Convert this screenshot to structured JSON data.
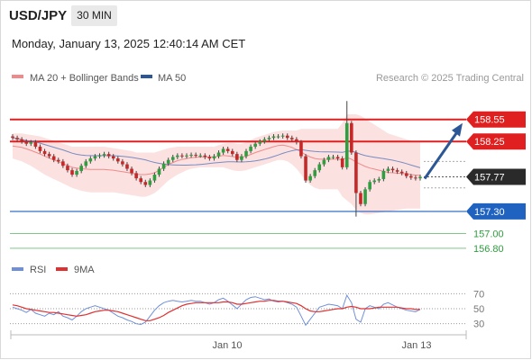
{
  "header": {
    "symbol": "USD/JPY",
    "timeframe": "30 MIN",
    "timestamp": "Monday, January 13, 2025 12:40:14 AM CET"
  },
  "legend": {
    "ma20_label": "MA 20 + Bollinger Bands",
    "ma50_label": "MA 50",
    "credit": "Research © 2025 Trading Central",
    "rsi_label": "RSI",
    "rsi_ma_label": "9MA"
  },
  "colors": {
    "candle_up": "#2e9e3e",
    "candle_down": "#c62828",
    "bollinger_band": "#fbdada",
    "ma20": "#f08a8a",
    "ma50": "#5577bb",
    "resistance": "#e02020",
    "support": "#1f62c0",
    "support_weak": "#2e9e3e",
    "arrow": "#2b5797",
    "rsi": "#6f8fd8",
    "rsi_ma": "#e03030"
  },
  "chart_data": [
    {
      "type": "candlestick",
      "series_names": [
        "MA 20 + Bollinger Bands",
        "MA 50"
      ],
      "x_tick_labels": [
        "Jan 10",
        "Jan 13"
      ],
      "ylim": [
        156.7,
        158.95
      ],
      "last_price": 157.77,
      "levels": [
        {
          "value": 158.55,
          "label": "158.55",
          "kind": "resistance"
        },
        {
          "value": 158.25,
          "label": "158.25",
          "kind": "resistance"
        },
        {
          "value": 157.3,
          "label": "157.30",
          "kind": "support"
        },
        {
          "value": 157.0,
          "label": "157.00",
          "kind": "target"
        },
        {
          "value": 156.8,
          "label": "156.80",
          "kind": "target"
        }
      ],
      "current_price_label": "157.77",
      "forecast_arrow": {
        "from": 157.77,
        "to": 158.55
      },
      "closes": [
        158.3,
        158.28,
        158.25,
        158.22,
        158.24,
        158.18,
        158.12,
        158.08,
        158.05,
        158.0,
        157.98,
        157.92,
        157.86,
        157.8,
        157.85,
        157.92,
        157.98,
        158.02,
        158.05,
        158.06,
        158.08,
        158.05,
        158.02,
        157.98,
        157.94,
        157.88,
        157.82,
        157.75,
        157.7,
        157.66,
        157.72,
        157.8,
        157.88,
        157.95,
        158.0,
        158.04,
        158.06,
        158.05,
        158.06,
        158.07,
        158.06,
        158.06,
        158.04,
        158.02,
        158.05,
        158.1,
        158.15,
        158.12,
        158.08,
        158.0,
        158.05,
        158.12,
        158.18,
        158.22,
        158.25,
        158.28,
        158.3,
        158.32,
        158.32,
        158.33,
        158.3,
        158.28,
        158.24,
        158.05,
        157.72,
        157.78,
        157.86,
        157.94,
        158.0,
        158.04,
        158.04,
        158.02,
        157.9,
        158.5,
        158.1,
        157.55,
        157.4,
        157.6,
        157.7,
        157.72,
        157.74,
        157.85,
        157.88,
        157.86,
        157.84,
        157.82,
        157.78,
        157.76,
        157.75,
        157.77
      ],
      "bollinger_upper": [
        158.36,
        158.36,
        158.36,
        158.35,
        158.34,
        158.33,
        158.32,
        158.3,
        158.28,
        158.26,
        158.24,
        158.22,
        158.2,
        158.18,
        158.18,
        158.18,
        158.18,
        158.18,
        158.18,
        158.18,
        158.18,
        158.17,
        158.16,
        158.15,
        158.14,
        158.13,
        158.12,
        158.1,
        158.1,
        158.1,
        158.1,
        158.1,
        158.12,
        158.14,
        158.16,
        158.17,
        158.18,
        158.18,
        158.18,
        158.18,
        158.18,
        158.18,
        158.18,
        158.18,
        158.18,
        158.2,
        158.22,
        158.23,
        158.23,
        158.22,
        158.22,
        158.24,
        158.27,
        158.3,
        158.32,
        158.34,
        158.36,
        158.38,
        158.39,
        158.4,
        158.4,
        158.4,
        158.4,
        158.42,
        158.42,
        158.42,
        158.42,
        158.42,
        158.42,
        158.42,
        158.42,
        158.42,
        158.5,
        158.62,
        158.62,
        158.62,
        158.6,
        158.56,
        158.52,
        158.48,
        158.44,
        158.4,
        158.36,
        158.34,
        158.32,
        158.3,
        158.28,
        158.26,
        158.25,
        158.24
      ],
      "bollinger_lower": [
        158.02,
        158.0,
        157.98,
        157.95,
        157.92,
        157.88,
        157.84,
        157.8,
        157.77,
        157.74,
        157.71,
        157.68,
        157.65,
        157.62,
        157.6,
        157.58,
        157.57,
        157.56,
        157.56,
        157.56,
        157.56,
        157.56,
        157.56,
        157.55,
        157.54,
        157.53,
        157.52,
        157.51,
        157.5,
        157.5,
        157.52,
        157.55,
        157.6,
        157.66,
        157.72,
        157.76,
        157.8,
        157.83,
        157.86,
        157.88,
        157.89,
        157.9,
        157.9,
        157.9,
        157.9,
        157.9,
        157.9,
        157.88,
        157.86,
        157.85,
        157.85,
        157.86,
        157.88,
        157.9,
        157.92,
        157.94,
        157.96,
        157.98,
        158.0,
        158.0,
        157.98,
        157.94,
        157.88,
        157.8,
        157.72,
        157.66,
        157.62,
        157.6,
        157.6,
        157.6,
        157.6,
        157.6,
        157.5,
        157.45,
        157.4,
        157.32,
        157.28,
        157.26,
        157.26,
        157.27,
        157.28,
        157.29,
        157.3,
        157.31,
        157.32,
        157.33,
        157.34,
        157.34,
        157.34,
        157.34
      ]
    },
    {
      "type": "line",
      "series_names": [
        "RSI",
        "9MA"
      ],
      "ylim": [
        20,
        80
      ],
      "y_ticks": [
        70,
        50,
        30
      ],
      "rsi": [
        52,
        50,
        48,
        45,
        49,
        44,
        42,
        40,
        44,
        42,
        46,
        40,
        38,
        35,
        40,
        46,
        50,
        52,
        54,
        52,
        50,
        48,
        44,
        40,
        38,
        35,
        33,
        30,
        29,
        32,
        40,
        48,
        54,
        58,
        60,
        61,
        60,
        59,
        60,
        61,
        60,
        60,
        58,
        56,
        58,
        62,
        64,
        60,
        55,
        50,
        56,
        62,
        65,
        66,
        64,
        62,
        63,
        60,
        59,
        60,
        58,
        56,
        52,
        40,
        28,
        36,
        44,
        52,
        54,
        56,
        55,
        54,
        50,
        68,
        58,
        36,
        32,
        50,
        54,
        52,
        50,
        56,
        58,
        55,
        52,
        50,
        48,
        47,
        46,
        49
      ],
      "rsi_ma": [
        55,
        54,
        52,
        50,
        49,
        48,
        47,
        46,
        45,
        45,
        44,
        43,
        42,
        41,
        40,
        41,
        42,
        44,
        46,
        47,
        48,
        48,
        47,
        46,
        44,
        42,
        40,
        38,
        36,
        34,
        34,
        36,
        38,
        41,
        45,
        48,
        51,
        54,
        56,
        57,
        58,
        58,
        58,
        58,
        58,
        58,
        59,
        59,
        58,
        56,
        56,
        57,
        58,
        59,
        60,
        60,
        61,
        61,
        60,
        60,
        59,
        58,
        57,
        54,
        50,
        47,
        46,
        46,
        47,
        48,
        49,
        50,
        50,
        52,
        53,
        52,
        50,
        50,
        50,
        51,
        52,
        52,
        52,
        52,
        52,
        51,
        50,
        50,
        49,
        49
      ]
    }
  ]
}
